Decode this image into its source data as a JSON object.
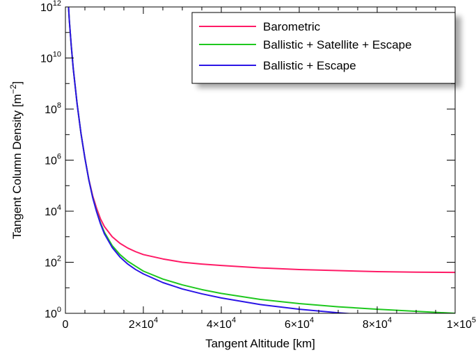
{
  "chart_data": {
    "type": "line",
    "xlabel": "Tangent Altitude [km]",
    "ylabel": "Tangent Column Density [m",
    "ylabel_exp": "−2",
    "ylabel_close": "]",
    "xlim": [
      0,
      100000
    ],
    "ylim_log10": [
      0,
      12
    ],
    "y_scale": "log",
    "grid": false,
    "legend_position": "top-right",
    "x_ticks": [
      {
        "value": 20000,
        "mantissa": "2×10",
        "exp": "4"
      },
      {
        "value": 40000,
        "mantissa": "4×10",
        "exp": "4"
      },
      {
        "value": 60000,
        "mantissa": "6×10",
        "exp": "4"
      },
      {
        "value": 80000,
        "mantissa": "8×10",
        "exp": "4"
      },
      {
        "value": 100000,
        "mantissa": "1×10",
        "exp": "5"
      }
    ],
    "x_zero_label": "0",
    "y_ticks": [
      {
        "log": 0,
        "base": "10",
        "exp": "0"
      },
      {
        "log": 2,
        "base": "10",
        "exp": "2"
      },
      {
        "log": 4,
        "base": "10",
        "exp": "4"
      },
      {
        "log": 6,
        "base": "10",
        "exp": "6"
      },
      {
        "log": 8,
        "base": "10",
        "exp": "8"
      },
      {
        "log": 10,
        "base": "10",
        "exp": "10"
      },
      {
        "log": 12,
        "base": "10",
        "exp": "12"
      }
    ],
    "series": [
      {
        "name": "Barometric",
        "color": "#ff1a66",
        "x": [
          800,
          1000,
          1500,
          2000,
          3000,
          4000,
          5000,
          6000,
          7000,
          8000,
          9000,
          10000,
          12000,
          14000,
          16000,
          18000,
          20000,
          25000,
          30000,
          35000,
          40000,
          50000,
          60000,
          70000,
          80000,
          90000,
          100000
        ],
        "y": [
          1000000000000.0,
          300000000000.0,
          30000000000.0,
          4000000000.0,
          160000000.0,
          11000000.0,
          1200000.0,
          180000.0,
          40000.0,
          13000.0,
          5000.0,
          2500.0,
          1000.0,
          550.0,
          360.0,
          260.0,
          200.0,
          135.0,
          100.0,
          85.0,
          75.0,
          60.0,
          52.0,
          47.0,
          43.0,
          41.0,
          40.0
        ]
      },
      {
        "name": "Ballistic + Satellite + Escape",
        "color": "#1ec81e",
        "x": [
          800,
          1000,
          1500,
          2000,
          3000,
          4000,
          5000,
          6000,
          7000,
          8000,
          9000,
          10000,
          12000,
          14000,
          16000,
          18000,
          20000,
          25000,
          30000,
          35000,
          40000,
          50000,
          60000,
          70000,
          80000,
          90000,
          100000
        ],
        "y": [
          1000000000000.0,
          300000000000.0,
          30000000000.0,
          4000000000.0,
          160000000.0,
          11000000.0,
          1200000.0,
          170000.0,
          35000.0,
          10000.0,
          3500.0,
          1500.0,
          450.0,
          200.0,
          110.0,
          70,
          45,
          22,
          13,
          8.5,
          6.0,
          3.5,
          2.4,
          1.8,
          1.45,
          1.2,
          1.0
        ]
      },
      {
        "name": "Ballistic + Escape",
        "color": "#2a14e6",
        "x": [
          800,
          1000,
          1500,
          2000,
          3000,
          4000,
          5000,
          6000,
          7000,
          8000,
          9000,
          10000,
          12000,
          14000,
          16000,
          18000,
          20000,
          25000,
          30000,
          35000,
          40000,
          50000,
          60000,
          70000,
          80000,
          90000
        ],
        "y": [
          1000000000000.0,
          300000000000.0,
          30000000000.0,
          4000000000.0,
          160000000.0,
          11000000.0,
          1200000.0,
          170000.0,
          34000.0,
          9500.0,
          3200.0,
          1300.0,
          380.0,
          160.0,
          85,
          52,
          35,
          16,
          9.0,
          5.8,
          4.0,
          2.2,
          1.45,
          1.05,
          0.8,
          0.62
        ]
      }
    ]
  }
}
